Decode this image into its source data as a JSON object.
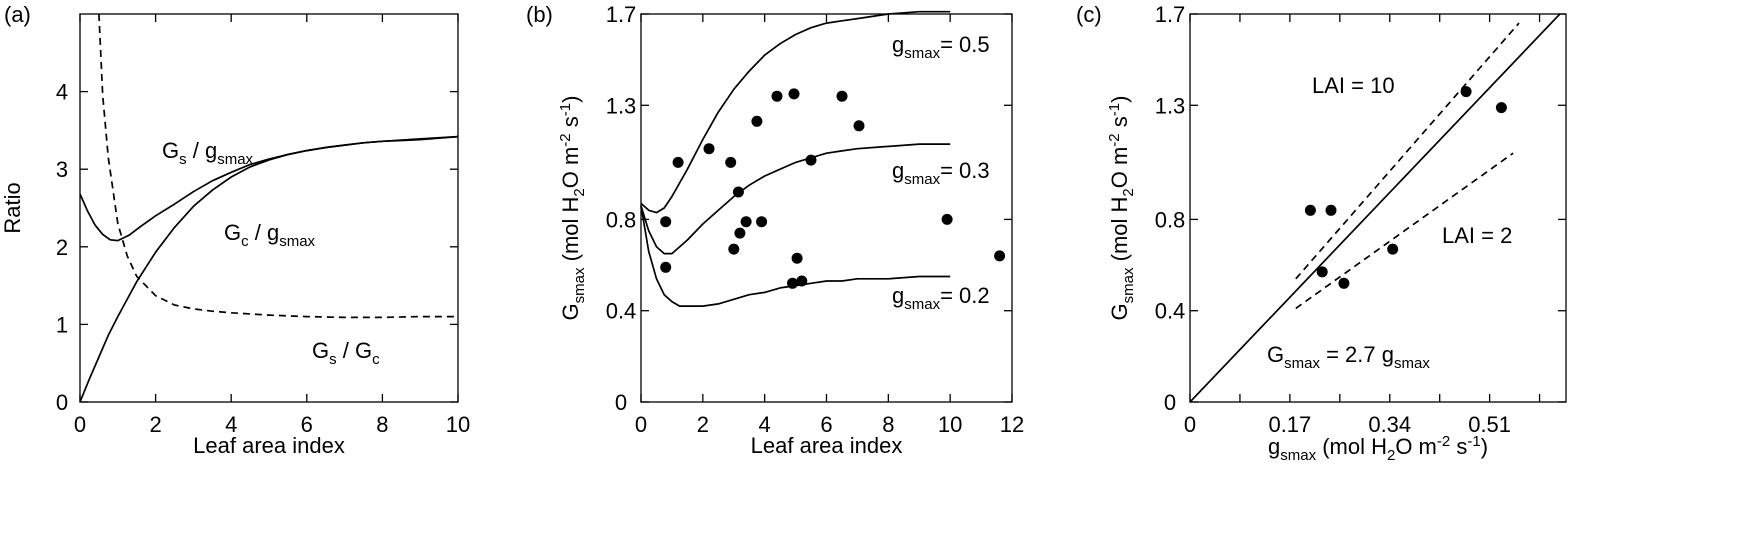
{
  "chart_data": [
    {
      "type": "line",
      "panel_label": "(a)",
      "xlabel": "Leaf area index",
      "ylabel": "Ratio",
      "xlim": [
        0,
        10
      ],
      "ylim": [
        0,
        5
      ],
      "xticks": [
        0,
        2,
        4,
        6,
        8,
        10
      ],
      "yticks": [
        0,
        1,
        2,
        3,
        4
      ],
      "series": [
        {
          "name": "Gs / gsmax",
          "style": "solid",
          "x": [
            0,
            0.2,
            0.4,
            0.6,
            0.8,
            1.0,
            1.3,
            1.6,
            2.0,
            2.5,
            3.0,
            3.5,
            4.0,
            4.5,
            5.0,
            5.5,
            6.0,
            6.5,
            7.0,
            7.5,
            8.0,
            8.5,
            9.0,
            9.5,
            10
          ],
          "y": [
            2.68,
            2.46,
            2.28,
            2.16,
            2.09,
            2.08,
            2.15,
            2.26,
            2.4,
            2.55,
            2.71,
            2.85,
            2.96,
            3.06,
            3.13,
            3.19,
            3.24,
            3.28,
            3.31,
            3.34,
            3.36,
            3.37,
            3.38,
            3.4,
            3.42
          ]
        },
        {
          "name": "Gc / gsmax",
          "style": "solid",
          "x": [
            0,
            0.25,
            0.5,
            0.75,
            1.0,
            1.5,
            2.0,
            2.5,
            3.0,
            3.5,
            4.0,
            4.5,
            5.0,
            5.5,
            6.0,
            6.5,
            7.0,
            7.5,
            8.0,
            9.0,
            10
          ],
          "y": [
            0,
            0.3,
            0.58,
            0.86,
            1.1,
            1.55,
            1.93,
            2.25,
            2.52,
            2.73,
            2.9,
            3.03,
            3.12,
            3.19,
            3.24,
            3.28,
            3.31,
            3.34,
            3.36,
            3.39,
            3.42
          ]
        },
        {
          "name": "Gs / Gc",
          "style": "dashed",
          "x": [
            0.5,
            0.6,
            0.75,
            1.0,
            1.25,
            1.5,
            2.0,
            2.5,
            3.0,
            3.5,
            4.0,
            5.0,
            6.0,
            7.0,
            8.0,
            9.0,
            10
          ],
          "y": [
            5.0,
            3.95,
            3.15,
            2.3,
            1.88,
            1.62,
            1.37,
            1.25,
            1.2,
            1.17,
            1.15,
            1.12,
            1.1,
            1.09,
            1.09,
            1.1,
            1.1
          ]
        }
      ],
      "annotations": {
        "gs_gsmax": {
          "main": "G",
          "sub1": "s",
          "mid": " / g",
          "sub2": "smax"
        },
        "gc_gsmax": {
          "main": "G",
          "sub1": "c",
          "mid": " / g",
          "sub2": "smax"
        },
        "gs_gc": {
          "main": "G",
          "sub1": "s",
          "mid": " / G",
          "sub2": "c"
        }
      }
    },
    {
      "type": "scatter",
      "panel_label": "(b)",
      "xlabel": "Leaf area index",
      "ylabel": {
        "main": "G",
        "sub": "smax",
        "rest1": " (mol H",
        "sub2": "2",
        "rest2": "O m",
        "sup1": "-2",
        "rest3": " s",
        "sup2": "-1",
        "rest4": ")"
      },
      "xlim": [
        0,
        12
      ],
      "ylim": [
        0,
        1.7
      ],
      "xticks": [
        0,
        2,
        4,
        6,
        8,
        10,
        12
      ],
      "yticks": [
        0,
        0.4,
        0.8,
        1.3,
        1.7
      ],
      "ytick_labels": [
        "0",
        "0.4",
        "0.8",
        "1.3",
        "1.7"
      ],
      "points": {
        "x": [
          0.8,
          0.8,
          1.2,
          2.2,
          2.9,
          3.0,
          3.15,
          3.2,
          3.4,
          3.75,
          3.9,
          4.4,
          4.9,
          4.95,
          5.05,
          5.2,
          5.5,
          6.5,
          7.05,
          9.9,
          11.6
        ],
        "y": [
          0.79,
          0.59,
          1.05,
          1.11,
          1.05,
          0.67,
          0.92,
          0.74,
          0.79,
          1.23,
          0.79,
          1.34,
          0.52,
          1.35,
          0.63,
          0.53,
          1.06,
          1.34,
          1.21,
          0.8,
          0.64
        ]
      },
      "series": [
        {
          "name": "gsmax = 0.5",
          "style": "solid",
          "x": [
            0,
            0.25,
            0.5,
            0.75,
            1.0,
            1.5,
            2.0,
            2.5,
            3.0,
            3.5,
            4.0,
            4.5,
            5.0,
            5.5,
            6.0,
            6.5,
            7.0,
            8.0,
            9.0,
            10
          ],
          "y": [
            0.87,
            0.84,
            0.83,
            0.85,
            0.9,
            1.02,
            1.15,
            1.27,
            1.37,
            1.45,
            1.52,
            1.57,
            1.61,
            1.64,
            1.66,
            1.67,
            1.68,
            1.7,
            1.71,
            1.71
          ]
        },
        {
          "name": "gsmax = 0.3",
          "style": "solid",
          "x": [
            0,
            0.25,
            0.5,
            0.75,
            1.0,
            1.5,
            2.0,
            2.5,
            3.0,
            3.5,
            4.0,
            4.5,
            5.0,
            5.5,
            6.0,
            6.5,
            7.0,
            8.0,
            9.0,
            10
          ],
          "y": [
            0.86,
            0.75,
            0.68,
            0.65,
            0.65,
            0.71,
            0.78,
            0.84,
            0.9,
            0.95,
            0.99,
            1.02,
            1.05,
            1.07,
            1.09,
            1.1,
            1.11,
            1.12,
            1.13,
            1.13
          ]
        },
        {
          "name": "gsmax = 0.2",
          "style": "solid",
          "x": [
            0,
            0.25,
            0.5,
            0.75,
            1.0,
            1.25,
            1.5,
            2.0,
            2.5,
            3.0,
            3.5,
            4.0,
            4.5,
            5.0,
            5.5,
            6.0,
            6.5,
            7.0,
            8.0,
            9.0,
            10
          ],
          "y": [
            0.86,
            0.66,
            0.54,
            0.47,
            0.44,
            0.42,
            0.42,
            0.42,
            0.43,
            0.45,
            0.47,
            0.48,
            0.5,
            0.51,
            0.52,
            0.53,
            0.53,
            0.54,
            0.54,
            0.55,
            0.55
          ]
        }
      ],
      "curve_labels": [
        {
          "main": "g",
          "sub": "smax",
          "rest": "= 0.5"
        },
        {
          "main": "g",
          "sub": "smax",
          "rest": "= 0.3"
        },
        {
          "main": "g",
          "sub": "smax",
          "rest": "= 0.2"
        }
      ]
    },
    {
      "type": "scatter",
      "panel_label": "(c)",
      "xlabel": {
        "main": "g",
        "sub": "smax",
        "rest1": " (mol H",
        "sub2": "2",
        "rest2": "O m",
        "sup1": "-2",
        "rest3": " s",
        "sup2": "-1",
        "rest4": ")"
      },
      "ylabel": {
        "main": "G",
        "sub": "smax",
        "rest1": " (mol H",
        "sub2": "2",
        "rest2": "O m",
        "sup1": "-2",
        "rest3": " s",
        "sup2": "-1",
        "rest4": ")"
      },
      "xlim": [
        0,
        0.64
      ],
      "ylim": [
        0,
        1.7
      ],
      "xticks": [
        0,
        0.17,
        0.34,
        0.51
      ],
      "xtick_labels": [
        "0",
        "0.17",
        "0.34",
        "0.51"
      ],
      "xticks_minor": [
        0.085,
        0.255,
        0.425,
        0.595
      ],
      "yticks": [
        0,
        0.4,
        0.8,
        1.3,
        1.7
      ],
      "ytick_labels": [
        "0",
        "0.4",
        "0.8",
        "1.3",
        "1.7"
      ],
      "points": {
        "x": [
          0.205,
          0.24,
          0.225,
          0.262,
          0.345,
          0.47,
          0.53
        ],
        "y": [
          0.84,
          0.84,
          0.57,
          0.52,
          0.67,
          1.36,
          1.29
        ]
      },
      "series": [
        {
          "name": "Gsmax = 2.7 gsmax",
          "style": "solid",
          "x": [
            0,
            0.64
          ],
          "y": [
            0,
            1.728
          ]
        },
        {
          "name": "LAI = 10",
          "style": "dashed",
          "x": [
            0.18,
            0.56
          ],
          "y": [
            0.54,
            1.66
          ]
        },
        {
          "name": "LAI = 2",
          "style": "dashed",
          "x": [
            0.18,
            0.55
          ],
          "y": [
            0.41,
            1.09
          ]
        }
      ],
      "annotations": {
        "lai10": "LAI = 10",
        "lai2": "LAI = 2",
        "relation": {
          "main": "G",
          "sub1": "smax",
          "mid": " = 2.7 g",
          "sub2": "smax"
        }
      }
    }
  ]
}
